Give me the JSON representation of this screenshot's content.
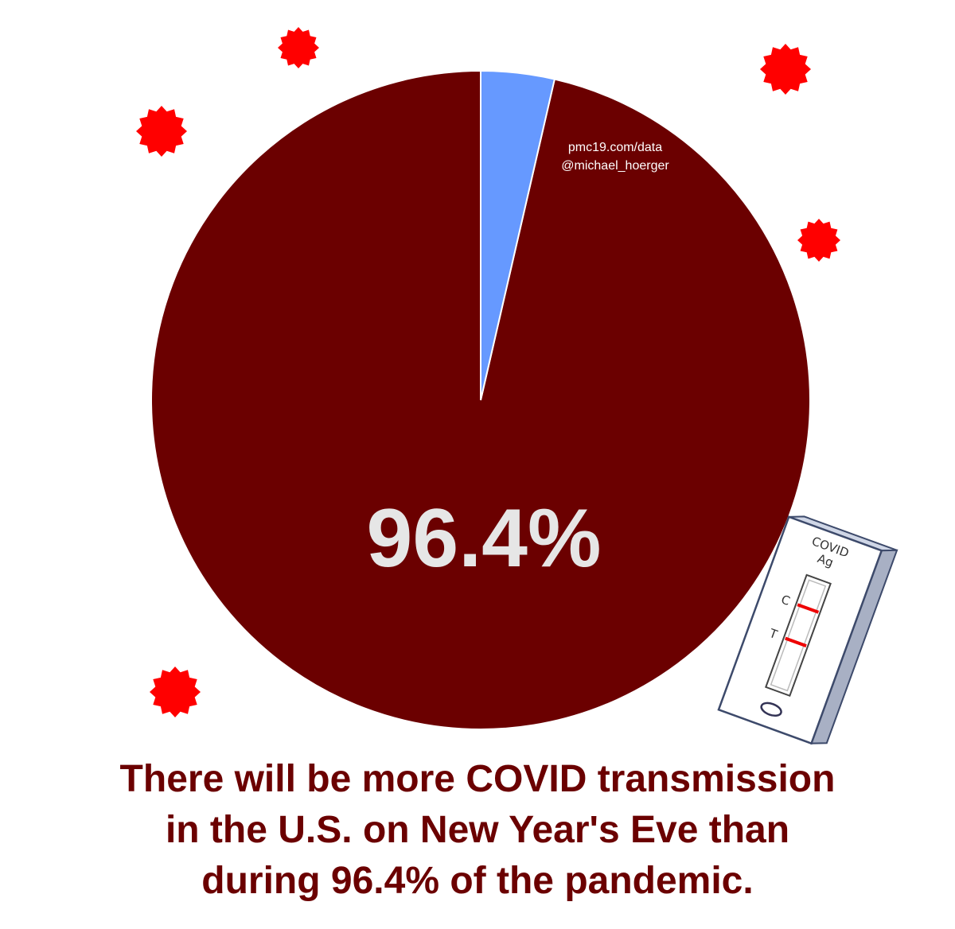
{
  "chart_data": {
    "type": "pie",
    "slices": [
      {
        "label": "96.4%",
        "value": 96.4,
        "color": "#6b0000"
      },
      {
        "label": "",
        "value": 3.6,
        "color": "#6699ff"
      }
    ],
    "center_label": "96.4%",
    "legend": "none"
  },
  "watermark": {
    "line1": "pmc19.com/data",
    "line2": "@michael_hoerger"
  },
  "caption": [
    "There will be more COVID transmission",
    "in the U.S. on New Year's Eve than",
    "during 96.4% of the pandemic."
  ],
  "test_strip": {
    "title_line1": "COVID",
    "title_line2": "Ag",
    "control_label": "C",
    "test_label": "T",
    "line_color": "#ee0000"
  },
  "virus_color": "#ff0000"
}
